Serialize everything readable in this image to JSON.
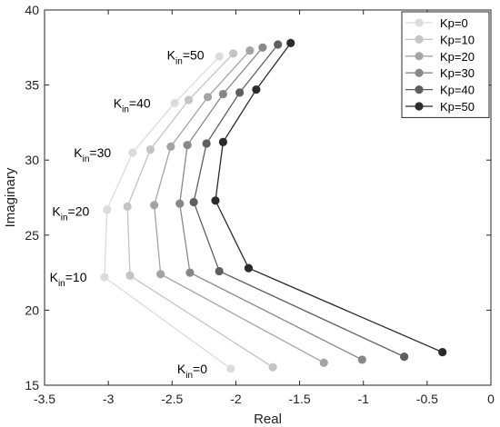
{
  "chart_data": {
    "type": "line",
    "xlabel": "Real",
    "ylabel": "Imaginary",
    "xlim": [
      -3.5,
      0
    ],
    "ylim": [
      15,
      40
    ],
    "xticks": [
      -3.5,
      -3,
      -2.5,
      -2,
      -1.5,
      -1,
      -0.5,
      0
    ],
    "yticks": [
      15,
      20,
      25,
      30,
      35,
      40
    ],
    "xtick_labels": [
      "-3.5",
      "-3",
      "-2.5",
      "-2",
      "-1.5",
      "-1",
      "-0.5",
      "0"
    ],
    "ytick_labels": [
      "15",
      "20",
      "25",
      "30",
      "35",
      "40"
    ],
    "grid": false,
    "legend_position": "top-right",
    "series": [
      {
        "name": "Kp=0",
        "color": "#dcdcdc",
        "x": [
          -2.04,
          -3.03,
          -3.01,
          -2.81,
          -2.48,
          -2.13
        ],
        "y": [
          16.1,
          22.2,
          26.7,
          30.5,
          33.8,
          36.9
        ]
      },
      {
        "name": "Kp=10",
        "color": "#c4c4c4",
        "x": [
          -1.71,
          -2.83,
          -2.85,
          -2.67,
          -2.37,
          -2.02
        ],
        "y": [
          16.2,
          22.3,
          26.9,
          30.7,
          34.0,
          37.1
        ]
      },
      {
        "name": "Kp=20",
        "color": "#a4a4a4",
        "x": [
          -1.31,
          -2.59,
          -2.64,
          -2.51,
          -2.22,
          -1.89
        ],
        "y": [
          16.5,
          22.4,
          27.0,
          30.9,
          34.2,
          37.3
        ]
      },
      {
        "name": "Kp=30",
        "color": "#888888",
        "x": [
          -1.01,
          -2.36,
          -2.44,
          -2.38,
          -2.1,
          -1.79
        ],
        "y": [
          16.7,
          22.5,
          27.1,
          31.0,
          34.4,
          37.5
        ]
      },
      {
        "name": "Kp=40",
        "color": "#5f5f5f",
        "x": [
          -0.68,
          -2.13,
          -2.33,
          -2.23,
          -1.97,
          -1.67
        ],
        "y": [
          16.9,
          22.6,
          27.2,
          31.1,
          34.5,
          37.7
        ]
      },
      {
        "name": "Kp=50",
        "color": "#2b2b2b",
        "x": [
          -0.38,
          -1.9,
          -2.16,
          -2.1,
          -1.84,
          -1.57
        ],
        "y": [
          17.2,
          22.8,
          27.3,
          31.2,
          34.7,
          37.8
        ]
      }
    ],
    "annotations": [
      {
        "base": "K",
        "sub": "in",
        "suffix": "=0",
        "x": -2.46,
        "y": 16.1
      },
      {
        "base": "K",
        "sub": "in",
        "suffix": "=10",
        "x": -3.46,
        "y": 22.2
      },
      {
        "base": "K",
        "sub": "in",
        "suffix": "=20",
        "x": -3.44,
        "y": 26.6
      },
      {
        "base": "K",
        "sub": "in",
        "suffix": "=30",
        "x": -3.27,
        "y": 30.5
      },
      {
        "base": "K",
        "sub": "in",
        "suffix": "=40",
        "x": -2.96,
        "y": 33.8
      },
      {
        "base": "K",
        "sub": "in",
        "suffix": "=50",
        "x": -2.54,
        "y": 37.0
      }
    ]
  }
}
